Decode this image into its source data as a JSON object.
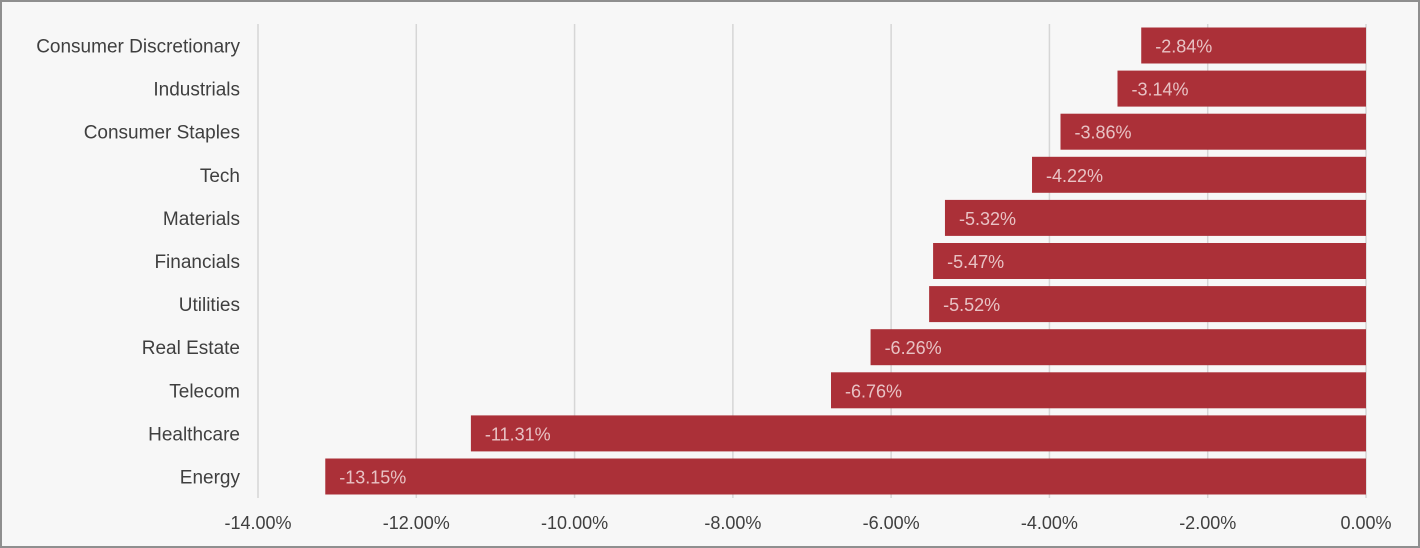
{
  "chart_data": {
    "type": "bar",
    "orientation": "horizontal",
    "title": "",
    "xlabel": "",
    "ylabel": "",
    "categories": [
      "Consumer Discretionary",
      "Industrials",
      "Consumer Staples",
      "Tech",
      "Materials",
      "Financials",
      "Utilities",
      "Real Estate",
      "Telecom",
      "Healthcare",
      "Energy"
    ],
    "values": [
      -2.84,
      -3.14,
      -3.86,
      -4.22,
      -5.32,
      -5.47,
      -5.52,
      -6.26,
      -6.76,
      -11.31,
      -13.15
    ],
    "data_labels": [
      "-2.84%",
      "-3.14%",
      "-3.86%",
      "-4.22%",
      "-5.32%",
      "-5.47%",
      "-5.52%",
      "-6.26%",
      "-6.76%",
      "-11.31%",
      "-13.15%"
    ],
    "xlim": [
      -14,
      0
    ],
    "x_ticks": [
      -14,
      -12,
      -10,
      -8,
      -6,
      -4,
      -2,
      0
    ],
    "x_tick_labels": [
      "-14.00%",
      "-12.00%",
      "-10.00%",
      "-8.00%",
      "-6.00%",
      "-4.00%",
      "-2.00%",
      "0.00%"
    ],
    "grid": true,
    "legend": "none",
    "colors": {
      "bar": "#ab3038",
      "data_label": "#e8c2c4",
      "grid": "#d6d6d6",
      "text": "#3f3f3f",
      "background": "#f7f7f7"
    }
  }
}
